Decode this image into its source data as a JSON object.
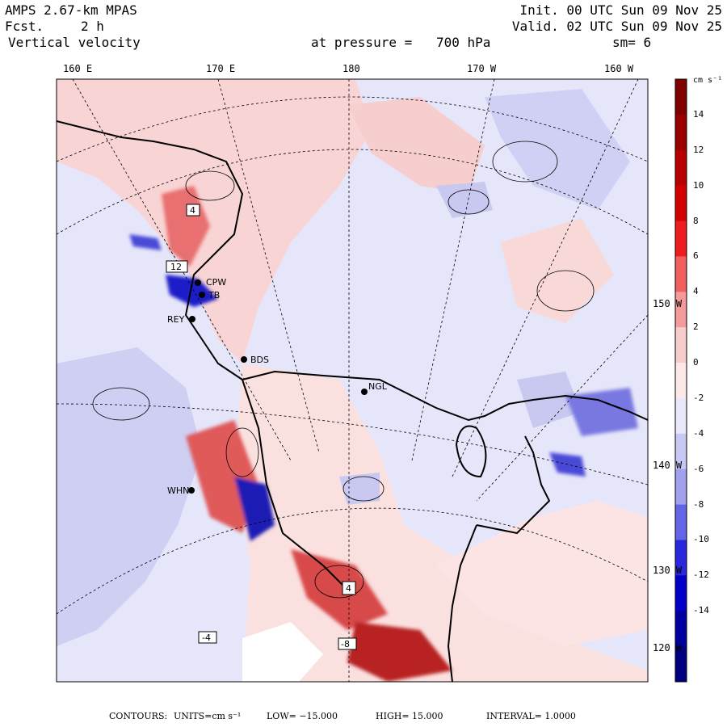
{
  "header": {
    "model": "AMPS 2.67-km MPAS",
    "forecast_label": "Fcst.",
    "forecast_value": "2 h",
    "variable": "Vertical velocity",
    "init": "Init. 00 UTC Sun 09 Nov 25",
    "valid": "Valid. 02 UTC Sun 09 Nov 25",
    "pressure_label": "at pressure =",
    "pressure_value": "700 hPa",
    "smooth": "sm= 6"
  },
  "longitude_labels": [
    "160 E",
    "170 E",
    "180",
    "170 W",
    "160 W"
  ],
  "latitude_labels": [
    "150 W",
    "140 W",
    "130 W",
    "120 W"
  ],
  "stations": [
    {
      "code": "CPW"
    },
    {
      "code": "TB"
    },
    {
      "code": "REY"
    },
    {
      "code": "BDS"
    },
    {
      "code": "NGL"
    },
    {
      "code": "WHN"
    }
  ],
  "contour_labels": [
    "4",
    "12",
    "4",
    "-4",
    "-8"
  ],
  "colorbar": {
    "units": "cm s⁻¹",
    "levels": [
      "14",
      "12",
      "10",
      "8",
      "6",
      "4",
      "2",
      "0",
      "-2",
      "-4",
      "-6",
      "-8",
      "-10",
      "-12",
      "-14"
    ],
    "colors": [
      "#800000",
      "#9a0000",
      "#b80000",
      "#d40000",
      "#ee1c1c",
      "#f06060",
      "#f49a9a",
      "#f9cccc",
      "#fde8e8",
      "#e8e8fa",
      "#c8c8f4",
      "#a0a0ee",
      "#6464e6",
      "#2828dc",
      "#0000c8",
      "#0000a0",
      "#000080"
    ]
  },
  "footer": {
    "contours": "CONTOURS:",
    "units": "UNITS=cm s⁻¹",
    "low": "LOW= −15.000",
    "high": "HIGH=  15.000",
    "interval": "INTERVAL=   1.0000"
  }
}
